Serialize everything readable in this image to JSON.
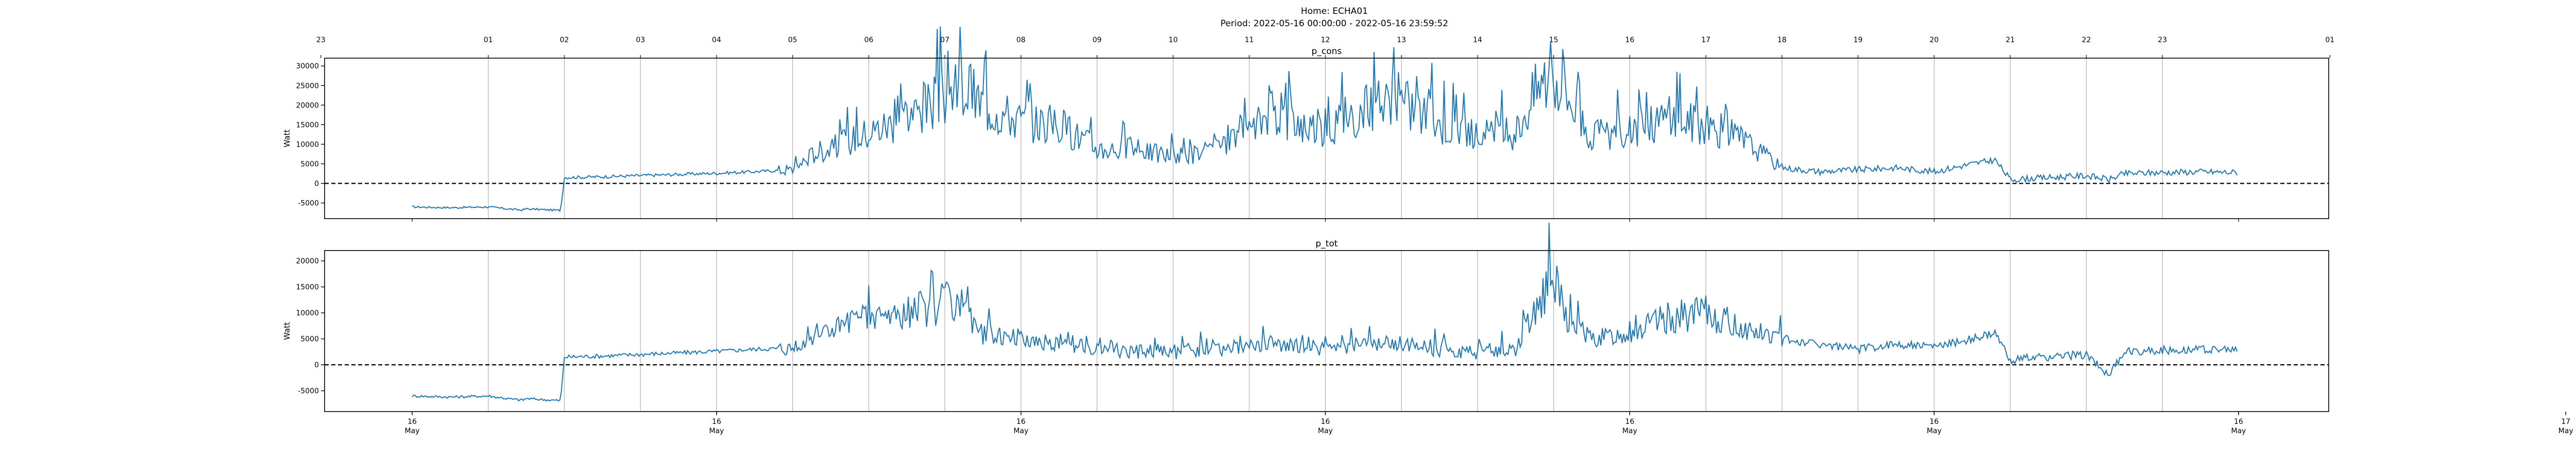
{
  "figure": {
    "home_title": "Home: ECHA01",
    "period_title": "Period: 2022-05-16 00:00:00 - 2022-05-16 23:59:52"
  },
  "chart_data": [
    {
      "type": "line",
      "title": "p_cons",
      "ylabel": "Watt",
      "xlabel": "",
      "grid": "vertical-hour-lines",
      "zero_line": "dashed-black",
      "color": "#1f77b4",
      "ylim": [
        -9000,
        32000
      ],
      "yticks": [
        -5000,
        0,
        5000,
        10000,
        15000,
        20000,
        25000,
        30000
      ],
      "top_hour_ticks": [
        "23",
        "01",
        "02",
        "03",
        "04",
        "05",
        "06",
        "07",
        "08",
        "09",
        "10",
        "11",
        "12",
        "13",
        "14",
        "15",
        "16",
        "17",
        "18",
        "19",
        "20",
        "21",
        "22",
        "23",
        "01"
      ],
      "series": [
        {
          "name": "",
          "x": [
            0.0,
            0.5,
            1.0,
            1.3,
            1.45,
            1.5,
            1.95,
            2.0,
            2.5,
            3.0,
            3.5,
            4.0,
            4.5,
            5.0,
            5.3,
            5.5,
            6.0,
            6.5,
            7.0,
            7.3,
            7.5,
            8.0,
            8.5,
            9.0,
            9.5,
            10.0,
            10.5,
            11.0,
            11.3,
            11.5,
            12.0,
            12.5,
            13.0,
            13.5,
            14.0,
            14.5,
            14.8,
            15.0,
            15.2,
            15.5,
            16.0,
            16.5,
            17.0,
            17.5,
            18.0,
            18.5,
            19.0,
            19.5,
            20.0,
            20.5,
            20.8,
            21.0,
            21.5,
            22.0,
            22.3,
            22.5,
            23.0,
            23.5,
            23.98
          ],
          "y": [
            -6000,
            -6200,
            -6000,
            -6600,
            -6800,
            -6500,
            -6900,
            1500,
            1700,
            2000,
            2300,
            2600,
            3000,
            3500,
            8000,
            9000,
            13000,
            17000,
            22000,
            24000,
            20000,
            16000,
            15000,
            9000,
            8500,
            7000,
            8000,
            12000,
            20000,
            16000,
            14000,
            19000,
            21000,
            15000,
            12000,
            13000,
            25000,
            28000,
            22000,
            12000,
            13000,
            17000,
            15000,
            11000,
            4000,
            3000,
            3500,
            4000,
            3000,
            5000,
            6000,
            1000,
            1500,
            2000,
            1000,
            2500,
            2800,
            3000,
            2800
          ]
        }
      ]
    },
    {
      "type": "line",
      "title": "p_tot",
      "ylabel": "Watt",
      "xlabel": "",
      "grid": "vertical-hour-lines",
      "zero_line": "dashed-black",
      "color": "#1f77b4",
      "ylim": [
        -9000,
        22000
      ],
      "yticks": [
        -5000,
        0,
        5000,
        10000,
        15000,
        20000
      ],
      "bottom_ticks": [
        {
          "day": "16",
          "month": "May"
        },
        {
          "day": "16",
          "month": "May"
        },
        {
          "day": "16",
          "month": "May"
        },
        {
          "day": "16",
          "month": "May"
        },
        {
          "day": "16",
          "month": "May"
        },
        {
          "day": "16",
          "month": "May"
        },
        {
          "day": "16",
          "month": "May"
        },
        {
          "day": "16",
          "month": "May"
        },
        {
          "day": "17",
          "month": "May"
        },
        {
          "day": "17",
          "month": "May"
        }
      ],
      "series": [
        {
          "name": "",
          "x": [
            0.0,
            0.5,
            1.0,
            1.3,
            1.45,
            1.5,
            1.95,
            2.0,
            2.5,
            3.0,
            3.5,
            4.0,
            4.5,
            5.0,
            5.3,
            5.5,
            6.0,
            6.5,
            7.0,
            7.3,
            7.5,
            8.0,
            8.5,
            9.0,
            9.5,
            10.0,
            10.5,
            11.0,
            11.5,
            12.0,
            12.5,
            13.0,
            13.5,
            14.0,
            14.5,
            14.8,
            15.0,
            15.2,
            15.5,
            16.0,
            16.5,
            17.0,
            17.5,
            18.0,
            18.5,
            19.0,
            19.5,
            20.0,
            20.5,
            20.8,
            21.0,
            21.5,
            22.0,
            22.3,
            22.5,
            23.0,
            23.5,
            23.98
          ],
          "y": [
            -6000,
            -6200,
            -6000,
            -6600,
            -6800,
            -6500,
            -6900,
            1500,
            1700,
            2000,
            2300,
            2600,
            3000,
            3200,
            6000,
            7000,
            9000,
            10000,
            12000,
            9000,
            6000,
            5000,
            4000,
            3000,
            2500,
            2500,
            3000,
            3500,
            4000,
            3000,
            3500,
            4000,
            3000,
            2500,
            3000,
            12000,
            16000,
            8000,
            5000,
            6000,
            9000,
            10000,
            7000,
            5000,
            4000,
            3000,
            4000,
            3500,
            5000,
            6000,
            1000,
            1500,
            2000,
            -2000,
            2500,
            2800,
            3000,
            2800
          ]
        }
      ]
    }
  ]
}
